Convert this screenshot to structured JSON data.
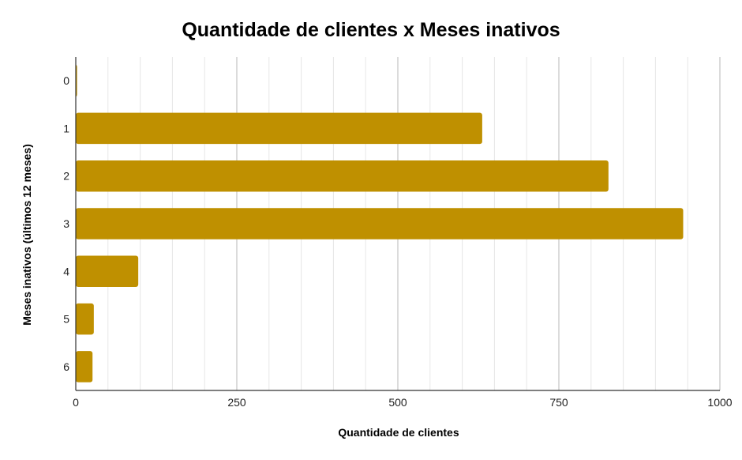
{
  "chart_data": {
    "type": "bar",
    "orientation": "horizontal",
    "title": "Quantidade de clientes x Meses inativos",
    "xlabel": "Quantidade de clientes",
    "ylabel": "Meses inativos (últimos 12 meses)",
    "categories": [
      "0",
      "1",
      "2",
      "3",
      "4",
      "5",
      "6"
    ],
    "values": [
      2,
      631,
      827,
      943,
      97,
      28,
      26
    ],
    "xlim": [
      0,
      1000
    ],
    "xticks": [
      0,
      250,
      500,
      750,
      1000
    ],
    "grid": true,
    "legend": "none",
    "bar_color": "#bf9000"
  }
}
